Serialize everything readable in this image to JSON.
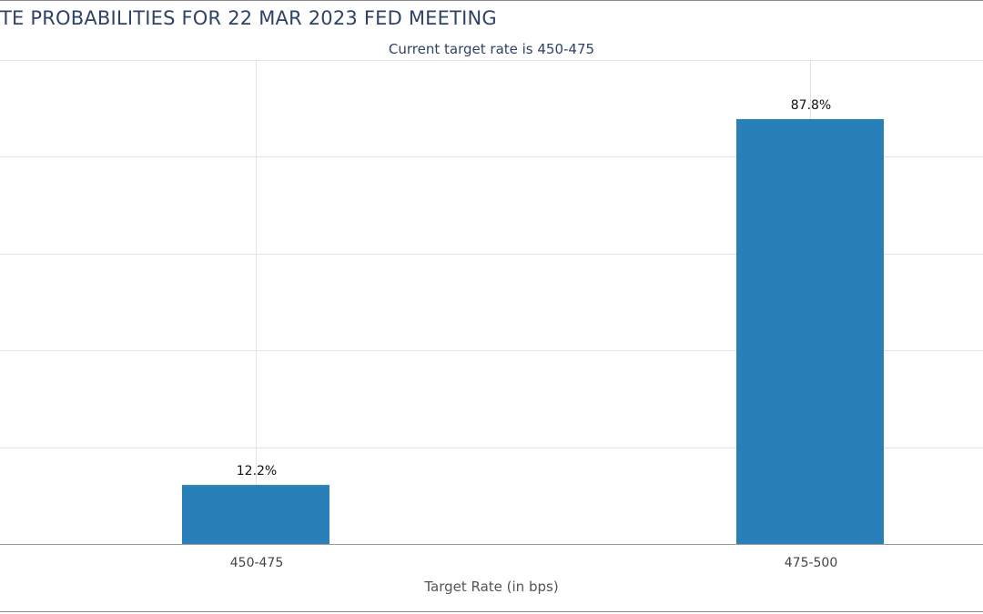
{
  "chart_data": {
    "type": "bar",
    "title": "TE PROBABILITIES FOR 22 MAR 2023 FED MEETING",
    "subtitle": "Current target rate is 450-475",
    "xlabel": "Target Rate (in bps)",
    "ylabel": "",
    "categories": [
      "450-475",
      "475-500"
    ],
    "values": [
      12.2,
      87.8
    ],
    "value_labels": [
      "12.2%",
      "87.8%"
    ],
    "ylim": [
      0,
      100
    ],
    "grid": true,
    "legend": "none",
    "bar_color": "#2980b9"
  }
}
